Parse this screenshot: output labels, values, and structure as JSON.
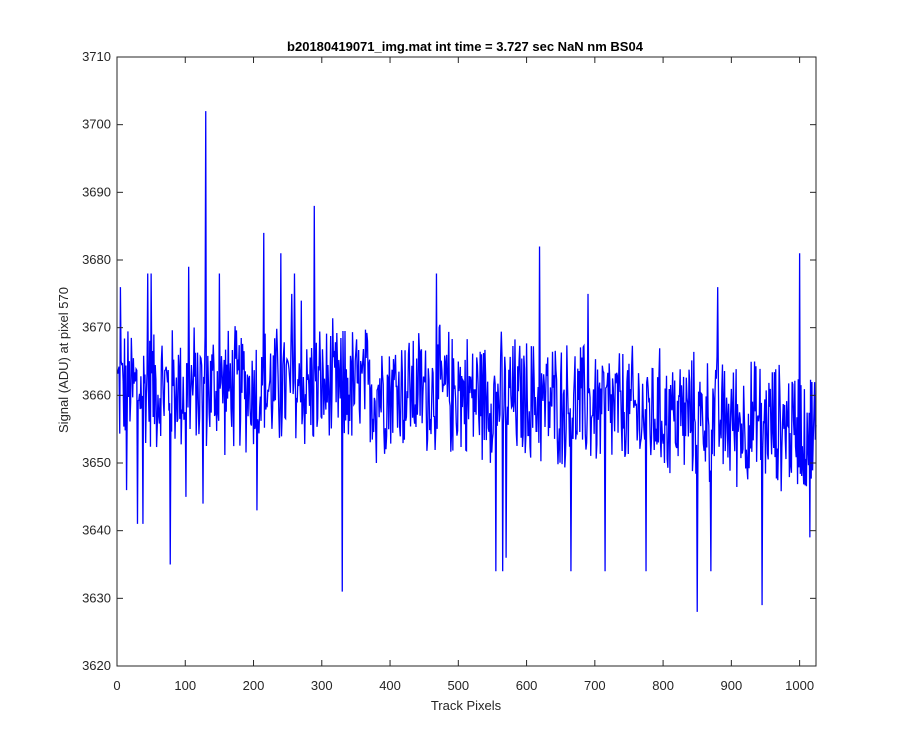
{
  "chart_data": {
    "type": "line",
    "title": "b20180419071_img.mat int time = 3.727 sec  NaN nm BS04",
    "xlabel": "Track Pixels",
    "ylabel": "Signal (ADU) at pixel 570",
    "xlim": [
      0,
      1024
    ],
    "ylim": [
      3620,
      3710
    ],
    "xticks": [
      0,
      100,
      200,
      300,
      400,
      500,
      600,
      700,
      800,
      900,
      1000
    ],
    "yticks": [
      3620,
      3630,
      3640,
      3650,
      3660,
      3670,
      3680,
      3690,
      3700,
      3710
    ],
    "grid": false,
    "legend": "none",
    "line_color": "#0000ff",
    "series": [
      {
        "x_start": 1,
        "x_step": 1,
        "y_keypoints": [
          [
            0,
            3662
          ],
          [
            5,
            3676
          ],
          [
            10,
            3650
          ],
          [
            14,
            3646
          ],
          [
            20,
            3672
          ],
          [
            30,
            3660
          ],
          [
            40,
            3641
          ],
          [
            45,
            3678
          ],
          [
            50,
            3664
          ],
          [
            60,
            3672
          ],
          [
            70,
            3650
          ],
          [
            80,
            3635
          ],
          [
            90,
            3666
          ],
          [
            100,
            3645
          ],
          [
            105,
            3679
          ],
          [
            110,
            3655
          ],
          [
            120,
            3660
          ],
          [
            126,
            3644
          ],
          [
            130,
            3702
          ],
          [
            135,
            3650
          ],
          [
            140,
            3666
          ],
          [
            150,
            3657
          ],
          [
            160,
            3648
          ],
          [
            170,
            3670
          ],
          [
            180,
            3658
          ],
          [
            190,
            3652
          ],
          [
            200,
            3658
          ],
          [
            205,
            3643
          ],
          [
            215,
            3684
          ],
          [
            220,
            3667
          ],
          [
            225,
            3655
          ],
          [
            240,
            3664
          ],
          [
            250,
            3660
          ],
          [
            260,
            3675
          ],
          [
            270,
            3658
          ],
          [
            280,
            3650
          ],
          [
            290,
            3688
          ],
          [
            300,
            3664
          ],
          [
            310,
            3676
          ],
          [
            320,
            3667
          ],
          [
            330,
            3631
          ],
          [
            340,
            3664
          ],
          [
            350,
            3660
          ],
          [
            360,
            3664
          ],
          [
            370,
            3652
          ],
          [
            380,
            3665
          ],
          [
            390,
            3655
          ],
          [
            400,
            3666
          ],
          [
            410,
            3660
          ],
          [
            420,
            3656
          ],
          [
            430,
            3664
          ],
          [
            440,
            3658
          ],
          [
            450,
            3660
          ],
          [
            460,
            3654
          ],
          [
            470,
            3660
          ],
          [
            480,
            3655
          ],
          [
            490,
            3652
          ],
          [
            500,
            3670
          ],
          [
            510,
            3655
          ],
          [
            520,
            3643
          ],
          [
            530,
            3660
          ],
          [
            540,
            3654
          ],
          [
            555,
            3634
          ],
          [
            560,
            3662
          ],
          [
            570,
            3636
          ],
          [
            580,
            3655
          ],
          [
            590,
            3660
          ],
          [
            600,
            3654
          ],
          [
            620,
            3682
          ],
          [
            630,
            3650
          ],
          [
            640,
            3656
          ],
          [
            650,
            3654
          ],
          [
            660,
            3668
          ],
          [
            670,
            3656
          ],
          [
            680,
            3650
          ],
          [
            690,
            3660
          ],
          [
            700,
            3656
          ],
          [
            710,
            3652
          ],
          [
            720,
            3634
          ],
          [
            730,
            3660
          ],
          [
            740,
            3652
          ],
          [
            750,
            3656
          ],
          [
            760,
            3650
          ],
          [
            770,
            3658
          ],
          [
            780,
            3656
          ],
          [
            790,
            3652
          ],
          [
            800,
            3654
          ],
          [
            810,
            3660
          ],
          [
            820,
            3652
          ],
          [
            830,
            3654
          ],
          [
            840,
            3656
          ],
          [
            850,
            3628
          ],
          [
            860,
            3655
          ],
          [
            870,
            3644
          ],
          [
            880,
            3656
          ],
          [
            890,
            3652
          ],
          [
            900,
            3658
          ],
          [
            910,
            3650
          ],
          [
            920,
            3655
          ],
          [
            930,
            3660
          ],
          [
            940,
            3650
          ],
          [
            945,
            3629
          ],
          [
            950,
            3655
          ],
          [
            960,
            3660
          ],
          [
            970,
            3656
          ],
          [
            980,
            3658
          ],
          [
            990,
            3662
          ],
          [
            1000,
            3681
          ],
          [
            1005,
            3665
          ],
          [
            1010,
            3662
          ],
          [
            1015,
            3639
          ],
          [
            1020,
            3660
          ],
          [
            1024,
            3662
          ]
        ],
        "noise_amplitude": 9,
        "spikes": [
          [
            5,
            3676
          ],
          [
            14,
            3646
          ],
          [
            30,
            3641
          ],
          [
            38,
            3641
          ],
          [
            45,
            3678
          ],
          [
            50,
            3678
          ],
          [
            78,
            3635
          ],
          [
            101,
            3645
          ],
          [
            105,
            3679
          ],
          [
            126,
            3644
          ],
          [
            130,
            3702
          ],
          [
            150,
            3678
          ],
          [
            205,
            3643
          ],
          [
            215,
            3684
          ],
          [
            240,
            3681
          ],
          [
            256,
            3675
          ],
          [
            260,
            3678
          ],
          [
            270,
            3674
          ],
          [
            289,
            3688
          ],
          [
            330,
            3631
          ],
          [
            380,
            3650
          ],
          [
            468,
            3678
          ],
          [
            500,
            3665
          ],
          [
            555,
            3634
          ],
          [
            565,
            3634
          ],
          [
            570,
            3636
          ],
          [
            619,
            3682
          ],
          [
            665,
            3634
          ],
          [
            690,
            3675
          ],
          [
            715,
            3634
          ],
          [
            775,
            3634
          ],
          [
            850,
            3628
          ],
          [
            870,
            3634
          ],
          [
            880,
            3676
          ],
          [
            945,
            3629
          ],
          [
            1000,
            3681
          ],
          [
            1015,
            3639
          ]
        ]
      }
    ]
  }
}
